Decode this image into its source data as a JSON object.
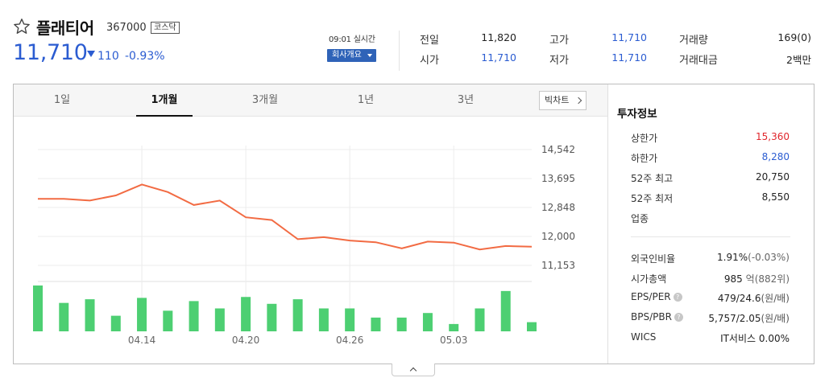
{
  "stock": {
    "name": "플래티어",
    "code": "367000",
    "market": "코스닥",
    "price": "11,710",
    "change": "110",
    "change_rate": "-0.93%",
    "realtime_label": "09:01 실시간",
    "company_button": "회사개요"
  },
  "quotes": [
    {
      "label": "전일",
      "value": "11,820"
    },
    {
      "label": "고가",
      "value": "11,710"
    },
    {
      "label": "거래량",
      "value": "169(0)"
    },
    {
      "label": "시가",
      "value": "11,710"
    },
    {
      "label": "저가",
      "value": "11,710"
    },
    {
      "label": "거래대금",
      "value": "2백만"
    }
  ],
  "tabs": [
    "1일",
    "1개월",
    "3개월",
    "1년",
    "3년"
  ],
  "active_tab": "1개월",
  "bigchart_label": "빅차트",
  "chart_data": {
    "type": "line",
    "y_ticks": [
      "14,542",
      "13,695",
      "12,848",
      "12,000",
      "11,153"
    ],
    "x_ticks": [
      "04.14",
      "04.20",
      "04.26",
      "05.03"
    ],
    "ylim": [
      11153,
      14542
    ],
    "price": [
      13100,
      13100,
      13050,
      13200,
      13520,
      13300,
      12920,
      13050,
      12560,
      12480,
      11920,
      11980,
      11880,
      11830,
      11650,
      11850,
      11820,
      11620,
      11720,
      11700
    ],
    "volume": [
      1.0,
      0.62,
      0.7,
      0.34,
      0.73,
      0.45,
      0.66,
      0.5,
      0.75,
      0.6,
      0.7,
      0.5,
      0.5,
      0.3,
      0.3,
      0.4,
      0.16,
      0.5,
      0.88,
      0.2
    ],
    "line_color": "#f26b43",
    "bar_color": "#4dcf72",
    "grid": true
  },
  "invest": {
    "title": "투자정보",
    "upper_limit": {
      "label": "상한가",
      "value": "15,360"
    },
    "lower_limit": {
      "label": "하한가",
      "value": "8,280"
    },
    "high52": {
      "label": "52주 최고",
      "value": "20,750"
    },
    "low52": {
      "label": "52주 최저",
      "value": "8,550"
    },
    "industry": {
      "label": "업종"
    },
    "foreign": {
      "label": "외국인비율",
      "value": "1.91%",
      "sub": "(-0.03%)"
    },
    "market_cap": {
      "label": "시가총액",
      "value": "985",
      "unit": "억",
      "sub": "(882위)"
    },
    "eps_per": {
      "label": "EPS/PER",
      "value": "479/24.6",
      "sub": "(원/배)"
    },
    "bps_pbr": {
      "label": "BPS/PBR",
      "value": "5,757/2.05",
      "sub": "(원/배)"
    },
    "wics": {
      "label": "WICS",
      "value": "IT서비스 0.00%"
    }
  },
  "colors": {
    "blue": "#2b5cd1",
    "red": "#e0262c"
  },
  "icons": {
    "star": "star-outline-icon",
    "down": "down-triangle-icon",
    "help": "question-circle-icon",
    "collapse": "chevron-up-icon"
  }
}
